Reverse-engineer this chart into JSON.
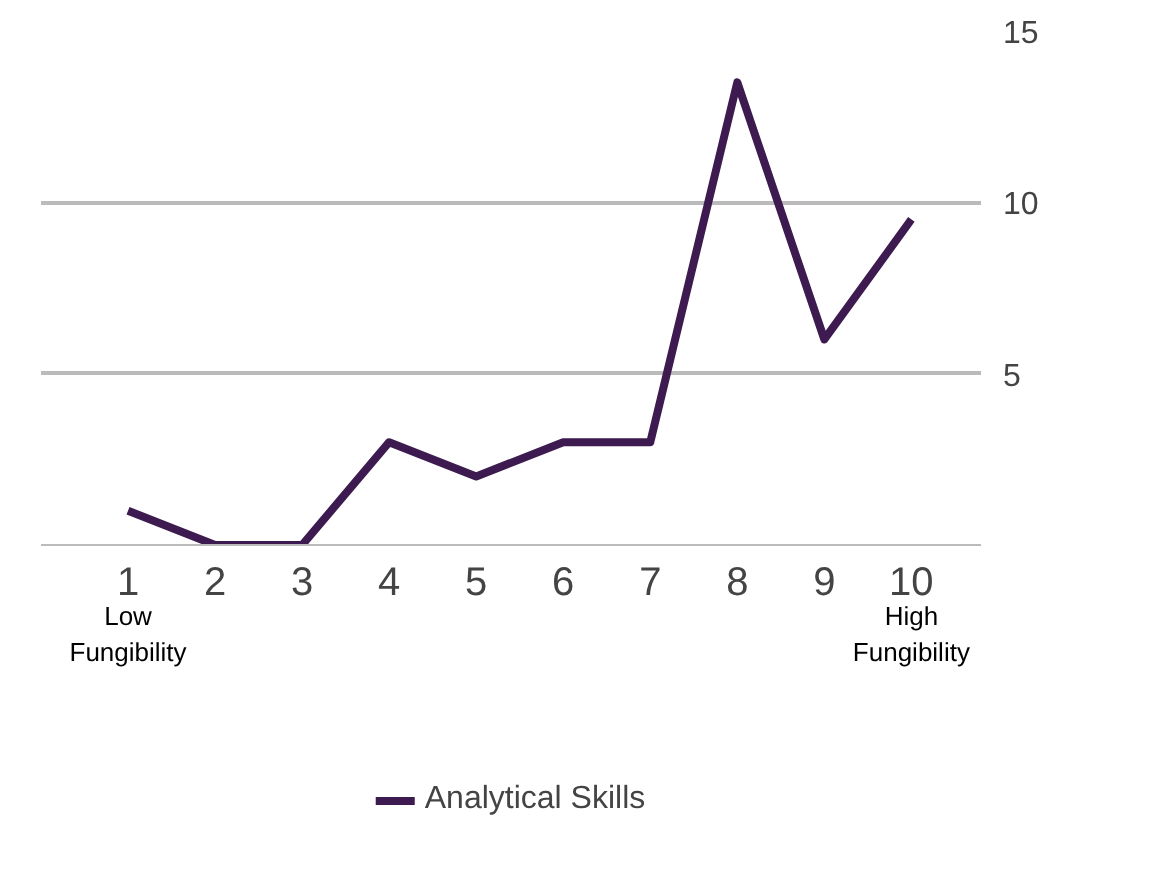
{
  "chart_data": {
    "type": "line",
    "categories": [
      "1",
      "2",
      "3",
      "4",
      "5",
      "6",
      "7",
      "8",
      "9",
      "10"
    ],
    "series": [
      {
        "name": "Analytical Skills",
        "color": "#3d1a4f",
        "values": [
          1,
          0,
          0,
          3,
          2,
          3,
          3,
          13.5,
          6,
          9.5
        ]
      }
    ],
    "ylim": [
      0,
      15
    ],
    "yticks": [
      5,
      10,
      15
    ],
    "grid": "y",
    "legend": "bottom",
    "marker": "none",
    "line_style": "solid",
    "annotations": [
      "Low\nFungibility",
      "High\nFungibility"
    ]
  }
}
